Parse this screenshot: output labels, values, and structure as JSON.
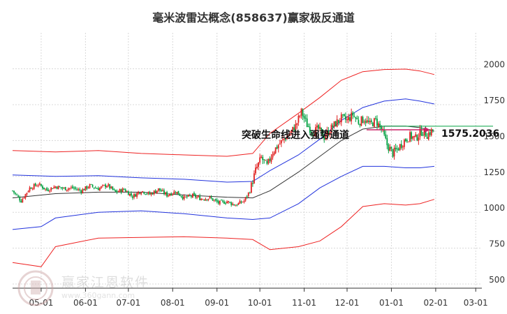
{
  "title": "毫米波雷达概念(858637)赢家极反通道",
  "watermark": {
    "text": "赢家江恩软件",
    "sub": "www.360gann.com"
  },
  "annotation": "突破生命线进入强势通道",
  "price_label": "1575.2036",
  "colors": {
    "up": "#e02020",
    "down": "#00a040",
    "outer": "#ee2222",
    "inner": "#2233dd",
    "mid": "#333333",
    "arrow": "#cc2266",
    "hline": "#00a040",
    "grid": "#d8d8d8"
  },
  "chart_data": {
    "type": "candlestick",
    "title": "毫米波雷达概念(858637)赢家极反通道",
    "y_ticks": [
      2000,
      1750,
      1500,
      1250,
      1000,
      750,
      500
    ],
    "ylim": [
      450,
      2000
    ],
    "x_ticks": [
      "05-01",
      "06-01",
      "07-01",
      "08-01",
      "09-01",
      "10-01",
      "11-01",
      "12-01",
      "01-01",
      "02-01",
      "03-01"
    ],
    "series_days": 216,
    "x_tick_days": [
      20,
      51,
      81,
      112,
      143,
      173,
      204,
      234,
      265,
      296,
      324
    ],
    "last_close": 1575.2036,
    "closes": [
      [
        0,
        1150
      ],
      [
        6,
        1080
      ],
      [
        12,
        1170
      ],
      [
        18,
        1195
      ],
      [
        24,
        1155
      ],
      [
        30,
        1180
      ],
      [
        36,
        1165
      ],
      [
        42,
        1170
      ],
      [
        48,
        1150
      ],
      [
        54,
        1185
      ],
      [
        60,
        1165
      ],
      [
        66,
        1190
      ],
      [
        72,
        1140
      ],
      [
        78,
        1160
      ],
      [
        84,
        1110
      ],
      [
        90,
        1150
      ],
      [
        96,
        1125
      ],
      [
        102,
        1160
      ],
      [
        108,
        1120
      ],
      [
        114,
        1145
      ],
      [
        120,
        1100
      ],
      [
        126,
        1115
      ],
      [
        132,
        1095
      ],
      [
        138,
        1100
      ],
      [
        144,
        1065
      ],
      [
        150,
        1075
      ],
      [
        156,
        1050
      ],
      [
        162,
        1080
      ],
      [
        166,
        1150
      ],
      [
        170,
        1290
      ],
      [
        174,
        1380
      ],
      [
        178,
        1320
      ],
      [
        182,
        1420
      ],
      [
        186,
        1470
      ],
      [
        190,
        1510
      ],
      [
        194,
        1550
      ],
      [
        198,
        1600
      ],
      [
        202,
        1700
      ],
      [
        206,
        1610
      ],
      [
        210,
        1560
      ],
      [
        214,
        1580
      ],
      [
        218,
        1525
      ],
      [
        222,
        1575
      ],
      [
        226,
        1620
      ],
      [
        230,
        1655
      ],
      [
        234,
        1640
      ],
      [
        238,
        1680
      ],
      [
        242,
        1630
      ],
      [
        246,
        1650
      ],
      [
        250,
        1610
      ],
      [
        254,
        1640
      ],
      [
        258,
        1580
      ],
      [
        262,
        1470
      ],
      [
        266,
        1410
      ],
      [
        270,
        1450
      ],
      [
        274,
        1500
      ],
      [
        278,
        1530
      ],
      [
        282,
        1515
      ],
      [
        286,
        1565
      ],
      [
        290,
        1540
      ],
      [
        294,
        1575
      ]
    ],
    "outer_upper": [
      [
        0,
        1430
      ],
      [
        30,
        1420
      ],
      [
        60,
        1430
      ],
      [
        90,
        1410
      ],
      [
        120,
        1400
      ],
      [
        150,
        1390
      ],
      [
        168,
        1410
      ],
      [
        180,
        1550
      ],
      [
        200,
        1690
      ],
      [
        215,
        1800
      ],
      [
        230,
        1920
      ],
      [
        245,
        1980
      ],
      [
        260,
        1995
      ],
      [
        275,
        1998
      ],
      [
        285,
        1985
      ],
      [
        295,
        1960
      ]
    ],
    "inner_upper": [
      [
        0,
        1260
      ],
      [
        30,
        1250
      ],
      [
        60,
        1255
      ],
      [
        90,
        1240
      ],
      [
        120,
        1230
      ],
      [
        150,
        1210
      ],
      [
        168,
        1215
      ],
      [
        180,
        1290
      ],
      [
        200,
        1400
      ],
      [
        215,
        1510
      ],
      [
        230,
        1640
      ],
      [
        245,
        1730
      ],
      [
        260,
        1775
      ],
      [
        275,
        1790
      ],
      [
        285,
        1775
      ],
      [
        295,
        1755
      ]
    ],
    "middle": [
      [
        0,
        1100
      ],
      [
        30,
        1130
      ],
      [
        60,
        1140
      ],
      [
        90,
        1140
      ],
      [
        120,
        1120
      ],
      [
        150,
        1105
      ],
      [
        168,
        1100
      ],
      [
        180,
        1150
      ],
      [
        200,
        1280
      ],
      [
        215,
        1390
      ],
      [
        230,
        1500
      ],
      [
        245,
        1580
      ],
      [
        260,
        1600
      ],
      [
        275,
        1600
      ],
      [
        285,
        1590
      ],
      [
        295,
        1565
      ]
    ],
    "inner_lower": [
      [
        0,
        880
      ],
      [
        20,
        900
      ],
      [
        30,
        960
      ],
      [
        60,
        1000
      ],
      [
        90,
        1010
      ],
      [
        120,
        990
      ],
      [
        150,
        960
      ],
      [
        168,
        950
      ],
      [
        180,
        960
      ],
      [
        200,
        1060
      ],
      [
        215,
        1170
      ],
      [
        230,
        1250
      ],
      [
        245,
        1320
      ],
      [
        260,
        1320
      ],
      [
        275,
        1310
      ],
      [
        285,
        1310
      ],
      [
        295,
        1320
      ]
    ],
    "outer_lower": [
      [
        0,
        650
      ],
      [
        20,
        620
      ],
      [
        30,
        760
      ],
      [
        60,
        820
      ],
      [
        90,
        825
      ],
      [
        120,
        830
      ],
      [
        150,
        820
      ],
      [
        168,
        810
      ],
      [
        180,
        740
      ],
      [
        200,
        760
      ],
      [
        215,
        800
      ],
      [
        230,
        900
      ],
      [
        245,
        1040
      ],
      [
        260,
        1060
      ],
      [
        275,
        1050
      ],
      [
        285,
        1060
      ],
      [
        295,
        1090
      ]
    ]
  }
}
